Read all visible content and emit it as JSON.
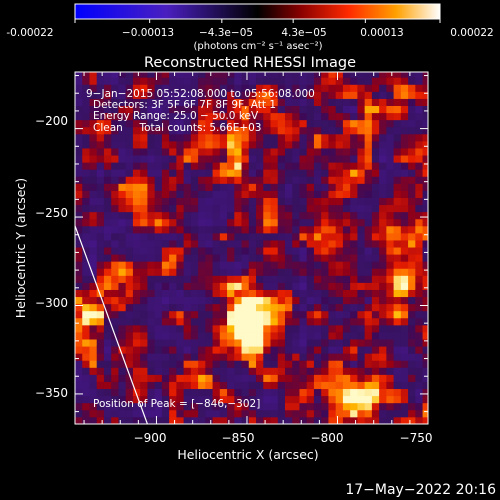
{
  "chart_data": {
    "type": "heatmap",
    "title": "Reconstructed RHESSI Image",
    "xlabel": "Heliocentric X (arcsec)",
    "ylabel": "Heliocentric Y (arcsec)",
    "xlim": [
      -945,
      -750
    ],
    "ylim": [
      -367,
      -168
    ],
    "x_ticks": [
      -900,
      -850,
      -800,
      -750
    ],
    "x_tick_labels": [
      "−900",
      "−850",
      "−800",
      "−750"
    ],
    "y_ticks": [
      -200,
      -250,
      -300,
      -350
    ],
    "y_tick_labels": [
      "−200",
      "−250",
      "−300",
      "−350"
    ],
    "colorbar": {
      "range": [
        -0.00022,
        0.00022
      ],
      "tick_labels": [
        "-0.00022",
        "−0.00013",
        "−4.3e−05",
        "4.3e−05",
        "0.00013",
        "0.00022"
      ],
      "units": "(photons cm⁻² s⁻¹ asec⁻²)"
    },
    "annotations": {
      "time_range": "9−Jan−2015 05:52:08.000 to 05:56:08.000",
      "detectors": "Detectors: 3F 5F 6F 7F 8F 9F, Att 1",
      "energy": "Energy Range: 25.0 − 50.0 keV",
      "clean": "Clean     Total counts: 5.66E+03",
      "peak": "Position of Peak = [−846,−302]"
    },
    "peak": [
      -846,
      -302
    ],
    "limb_line": [
      [
        -945,
        -255
      ],
      [
        -905,
        -367
      ]
    ],
    "hotspots": [
      {
        "x": -850,
        "y": -306,
        "w": 1.0,
        "r": 9
      },
      {
        "x": -843,
        "y": -318,
        "w": 0.8,
        "r": 10
      },
      {
        "x": -858,
        "y": -292,
        "w": 0.6,
        "r": 8
      },
      {
        "x": -935,
        "y": -307,
        "w": 0.7,
        "r": 9
      },
      {
        "x": -940,
        "y": -323,
        "w": 0.5,
        "r": 7
      },
      {
        "x": -770,
        "y": -262,
        "w": 0.75,
        "r": 8
      },
      {
        "x": -765,
        "y": -285,
        "w": 0.6,
        "r": 10
      },
      {
        "x": -772,
        "y": -305,
        "w": 0.55,
        "r": 12
      },
      {
        "x": -783,
        "y": -355,
        "w": 0.6,
        "r": 12
      },
      {
        "x": -805,
        "y": -345,
        "w": 0.5,
        "r": 10
      },
      {
        "x": -895,
        "y": -278,
        "w": 0.45,
        "r": 9
      },
      {
        "x": -880,
        "y": -345,
        "w": 0.35,
        "r": 9
      },
      {
        "x": -860,
        "y": -212,
        "w": 0.45,
        "r": 10
      },
      {
        "x": -835,
        "y": -250,
        "w": 0.35,
        "r": 10
      },
      {
        "x": -905,
        "y": -240,
        "w": 0.3,
        "r": 10
      }
    ]
  },
  "footer": {
    "date": "17−May−2022 20:16"
  }
}
